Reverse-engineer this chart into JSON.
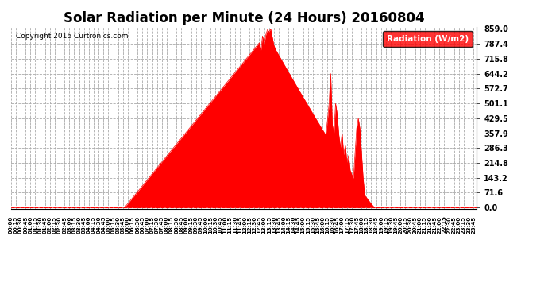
{
  "title": "Solar Radiation per Minute (24 Hours) 20160804",
  "copyright_text": "Copyright 2016 Curtronics.com",
  "legend_label": "Radiation (W/m2)",
  "fill_color": "#FF0000",
  "line_color": "#FF0000",
  "background_color": "#FFFFFF",
  "ytick_labels": [
    "0.0",
    "71.6",
    "143.2",
    "214.8",
    "286.3",
    "357.9",
    "429.5",
    "501.1",
    "572.7",
    "644.2",
    "715.8",
    "787.4",
    "859.0"
  ],
  "ytick_values": [
    0.0,
    71.6,
    143.2,
    214.8,
    286.3,
    357.9,
    429.5,
    501.1,
    572.7,
    644.2,
    715.8,
    787.4,
    859.0
  ],
  "ymax": 859.0,
  "ymin": 0.0,
  "dashed_line_color": "#FF0000",
  "title_fontsize": 12,
  "legend_box_color": "#FF0000",
  "legend_text_color": "#FFFFFF",
  "grid_color": "#AAAAAA",
  "grid_style": "--"
}
